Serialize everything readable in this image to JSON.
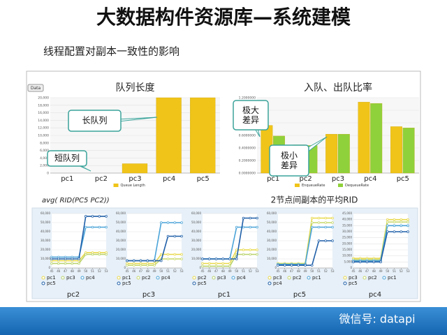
{
  "header": {
    "title": "大数据构件资源库—系统建模",
    "subtitle": "线程配置对副本一致性的影响"
  },
  "button": "Data",
  "formula": "avg(    RID(PC5    PC2))",
  "rid_title": "2节点间副本的平均RID",
  "watermark": "微信号: datapi",
  "chart_data": [
    {
      "type": "bar",
      "title": "队列长度",
      "categories": [
        "pc1",
        "pc2",
        "pc3",
        "pc4",
        "pc5"
      ],
      "series": [
        {
          "name": "Queue Length",
          "color": "#f0c419",
          "values": [
            0,
            0,
            2500,
            20000,
            20000
          ]
        }
      ],
      "ylim": [
        0,
        20000
      ],
      "yticks": [
        0,
        {
          "value": 2000,
          "label": "2,000"
        },
        {
          "value": 4000,
          "label": "4,000"
        },
        {
          "value": 6000,
          "label": "6,000"
        },
        {
          "value": 8000,
          "label": "8,000"
        },
        {
          "value": 10000,
          "label": "10,000"
        },
        {
          "value": 12000,
          "label": "12,000"
        },
        {
          "value": 14000,
          "label": "14,000"
        },
        {
          "value": 16000,
          "label": "16,000"
        },
        {
          "value": 18000,
          "label": "18,000"
        },
        {
          "value": 20000,
          "label": "20,000"
        }
      ],
      "grid": true,
      "annotations": [
        "长队列",
        "短队列"
      ]
    },
    {
      "type": "bar",
      "title": "入队、出队比率",
      "categories": [
        "pc1",
        "pc2",
        "pc3",
        "pc4",
        "pc5"
      ],
      "series": [
        {
          "name": "EnqueueRate",
          "color": "#f0c419",
          "values": [
            0.76,
            0.45,
            0.62,
            1.13,
            0.74
          ]
        },
        {
          "name": "DequeueRate",
          "color": "#8fd13a",
          "values": [
            0.59,
            0.44,
            0.62,
            1.11,
            0.72
          ]
        }
      ],
      "ylim": [
        0,
        1.2
      ],
      "yticks": [
        {
          "value": 0,
          "label": "0.0000000"
        },
        {
          "value": 0.2,
          "label": "0.2000000"
        },
        {
          "value": 0.4,
          "label": "0.4000000"
        },
        {
          "value": 0.6,
          "label": "0.6000000"
        },
        {
          "value": 0.8,
          "label": "0.8000000"
        },
        {
          "value": 1,
          "label": "1.0000000"
        },
        {
          "value": 1.2,
          "label": "1.2000000"
        }
      ],
      "grid": true,
      "annotations": [
        "极大差异",
        "极小差异"
      ]
    },
    {
      "type": "line",
      "xlabel": "pc2",
      "x": [
        45,
        46,
        47,
        48,
        49,
        50,
        51,
        52,
        53
      ],
      "xlim": [
        45,
        53
      ],
      "xticks": [
        45,
        46,
        47,
        48,
        49,
        50,
        51,
        52,
        53
      ],
      "ylim": [
        0,
        60000
      ],
      "yticks": [
        0,
        {
          "value": 10000,
          "label": "10,000"
        },
        {
          "value": 20000,
          "label": "20,000"
        },
        {
          "value": 30000,
          "label": "30,000"
        },
        {
          "value": 40000,
          "label": "40,000"
        },
        {
          "value": 50000,
          "label": "50,000"
        },
        {
          "value": 60000,
          "label": "60,000"
        }
      ],
      "grid": true,
      "series": [
        {
          "name": "pc1",
          "color": "#e8d84a",
          "values": [
            8000,
            8000,
            8000,
            8000,
            8000,
            17000,
            17000,
            17000,
            17000
          ]
        },
        {
          "name": "pc3",
          "color": "#b9d36b",
          "values": [
            5000,
            5000,
            5000,
            5000,
            5000,
            15000,
            15000,
            15000,
            15000
          ]
        },
        {
          "name": "pc4",
          "color": "#4aa3d8",
          "values": [
            12000,
            12000,
            12000,
            12000,
            12000,
            45000,
            45000,
            45000,
            45000
          ]
        },
        {
          "name": "pc5",
          "color": "#1f5fa8",
          "values": [
            10000,
            10000,
            10000,
            10000,
            10000,
            57000,
            57000,
            57000,
            57000
          ]
        }
      ]
    },
    {
      "type": "line",
      "xlabel": "pc3",
      "x": [
        45,
        46,
        47,
        48,
        49,
        50,
        51,
        52,
        53
      ],
      "xlim": [
        45,
        53
      ],
      "xticks": [
        45,
        46,
        47,
        48,
        49,
        50,
        51,
        52,
        53
      ],
      "ylim": [
        0,
        60000
      ],
      "yticks": [
        0,
        {
          "value": 10000,
          "label": "10,000"
        },
        {
          "value": 20000,
          "label": "20,000"
        },
        {
          "value": 30000,
          "label": "30,000"
        },
        {
          "value": 40000,
          "label": "40,000"
        },
        {
          "value": 50000,
          "label": "50,000"
        },
        {
          "value": 60000,
          "label": "60,000"
        }
      ],
      "grid": true,
      "series": [
        {
          "name": "pc1",
          "color": "#e8d84a",
          "values": [
            5000,
            5000,
            5000,
            5000,
            5000,
            15000,
            15000,
            15000,
            15000
          ]
        },
        {
          "name": "pc2",
          "color": "#c8d86a",
          "values": [
            3000,
            3000,
            3000,
            3000,
            3000,
            10000,
            10000,
            10000,
            10000
          ]
        },
        {
          "name": "pc4",
          "color": "#4aa3d8",
          "values": [
            8000,
            8000,
            8000,
            8000,
            8000,
            50000,
            50000,
            50000,
            50000
          ]
        },
        {
          "name": "pc5",
          "color": "#1f5fa8",
          "values": [
            8000,
            8000,
            8000,
            8000,
            8000,
            8000,
            35000,
            35000,
            35000
          ]
        }
      ]
    },
    {
      "type": "line",
      "xlabel": "pc1",
      "x": [
        45,
        46,
        47,
        48,
        49,
        50,
        51,
        52,
        53
      ],
      "xlim": [
        45,
        53
      ],
      "xticks": [
        45,
        46,
        47,
        48,
        49,
        50,
        51,
        52,
        53
      ],
      "ylim": [
        0,
        60000
      ],
      "yticks": [
        0,
        {
          "value": 10000,
          "label": "10,000"
        },
        {
          "value": 20000,
          "label": "20,000"
        },
        {
          "value": 30000,
          "label": "30,000"
        },
        {
          "value": 40000,
          "label": "40,000"
        },
        {
          "value": 50000,
          "label": "50,000"
        },
        {
          "value": 60000,
          "label": "60,000"
        }
      ],
      "grid": true,
      "series": [
        {
          "name": "pc2",
          "color": "#e8d84a",
          "values": [
            5000,
            5000,
            5000,
            5000,
            5000,
            20000,
            20000,
            20000,
            20000
          ]
        },
        {
          "name": "pc3",
          "color": "#b9d36b",
          "values": [
            2000,
            2000,
            2000,
            2000,
            2000,
            15000,
            15000,
            15000,
            15000
          ]
        },
        {
          "name": "pc4",
          "color": "#4aa3d8",
          "values": [
            10000,
            10000,
            10000,
            10000,
            10000,
            45000,
            45000,
            45000,
            45000
          ]
        },
        {
          "name": "pc5",
          "color": "#1f5fa8",
          "values": [
            10000,
            10000,
            10000,
            10000,
            10000,
            10000,
            55000,
            55000,
            55000
          ]
        }
      ]
    },
    {
      "type": "line",
      "xlabel": "pc5",
      "x": [
        45,
        46,
        47,
        48,
        49,
        50,
        51,
        52,
        53
      ],
      "xlim": [
        45,
        53
      ],
      "xticks": [
        45,
        46,
        47,
        48,
        49,
        50,
        51,
        52,
        53
      ],
      "ylim": [
        0,
        60000
      ],
      "yticks": [
        0,
        {
          "value": 10000,
          "label": "10,000"
        },
        {
          "value": 20000,
          "label": "20,000"
        },
        {
          "value": 30000,
          "label": "30,000"
        },
        {
          "value": 40000,
          "label": "40,000"
        },
        {
          "value": 50000,
          "label": "50,000"
        },
        {
          "value": 60000,
          "label": "60,000"
        }
      ],
      "grid": true,
      "series": [
        {
          "name": "pc3",
          "color": "#e8d84a",
          "values": [
            5000,
            5000,
            5000,
            5000,
            5000,
            55000,
            55000,
            55000,
            55000
          ]
        },
        {
          "name": "pc2",
          "color": "#c8d86a",
          "values": [
            5000,
            5000,
            5000,
            5000,
            5000,
            50000,
            50000,
            50000,
            50000
          ]
        },
        {
          "name": "pc1",
          "color": "#4aa3d8",
          "values": [
            4000,
            4000,
            4000,
            4000,
            4000,
            45000,
            45000,
            45000,
            45000
          ]
        },
        {
          "name": "pc4",
          "color": "#1f5fa8",
          "values": [
            3000,
            3000,
            3000,
            3000,
            3000,
            3000,
            30000,
            30000,
            30000
          ]
        }
      ]
    },
    {
      "type": "line",
      "xlabel": "pc4",
      "x": [
        45,
        46,
        47,
        48,
        49,
        50,
        51,
        52,
        53
      ],
      "xlim": [
        45,
        53
      ],
      "xticks": [
        45,
        46,
        47,
        48,
        49,
        50,
        51,
        52,
        53
      ],
      "ylim": [
        0,
        45000
      ],
      "yticks": [
        0,
        {
          "value": 5000,
          "label": "5,000"
        },
        {
          "value": 10000,
          "label": "10,000"
        },
        {
          "value": 15000,
          "label": "15,000"
        },
        {
          "value": 20000,
          "label": "20,000"
        },
        {
          "value": 25000,
          "label": "25,000"
        },
        {
          "value": 30000,
          "label": "30,000"
        },
        {
          "value": 35000,
          "label": "35,000"
        },
        {
          "value": 40000,
          "label": "40,000"
        },
        {
          "value": 45000,
          "label": "45,000"
        }
      ],
      "grid": true,
      "series": [
        {
          "name": "pc3",
          "color": "#e8d84a",
          "values": [
            8000,
            8000,
            8000,
            8000,
            8000,
            40000,
            40000,
            40000,
            40000
          ]
        },
        {
          "name": "pc2",
          "color": "#c8d86a",
          "values": [
            7000,
            7000,
            7000,
            7000,
            7000,
            38000,
            38000,
            38000,
            38000
          ]
        },
        {
          "name": "pc1",
          "color": "#4aa3d8",
          "values": [
            6000,
            6000,
            6000,
            6000,
            6000,
            35000,
            35000,
            35000,
            35000
          ]
        },
        {
          "name": "pc5",
          "color": "#1f5fa8",
          "values": [
            5000,
            5000,
            5000,
            5000,
            5000,
            30000,
            30000,
            30000,
            30000
          ]
        }
      ]
    }
  ]
}
